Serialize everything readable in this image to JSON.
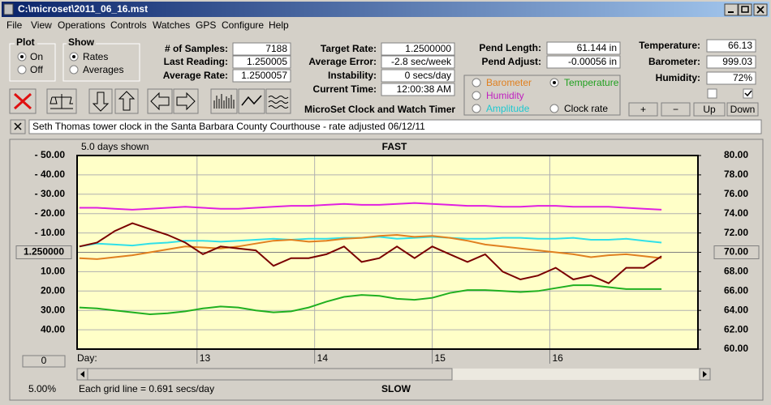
{
  "window": {
    "title": "C:\\microset\\2011_06_16.mst"
  },
  "menu": [
    "File",
    "View",
    "Operations",
    "Controls",
    "Watches",
    "GPS",
    "Configure",
    "Help"
  ],
  "plot_group": {
    "title": "Plot",
    "options": [
      "On",
      "Off"
    ]
  },
  "show_group": {
    "title": "Show",
    "options": [
      "Rates",
      "Averages"
    ]
  },
  "fields": [
    {
      "label": "# of Samples:",
      "value": "7188"
    },
    {
      "label": "Last Reading:",
      "value": "1.250005"
    },
    {
      "label": "Average Rate:",
      "value": "1.2500057"
    },
    {
      "label": "Target Rate:",
      "value": "1.2500000"
    },
    {
      "label": "Average Error:",
      "value": "-2.8 sec/week"
    },
    {
      "label": "Instability:",
      "value": "0 secs/day"
    },
    {
      "label": "Current Time:",
      "value": "12:00:38 AM"
    },
    {
      "label": "Pend Length:",
      "value": "61.144 in"
    },
    {
      "label": "Pend Adjust:",
      "value": "-0.00056 in"
    },
    {
      "label": "Temperature:",
      "value": "66.13"
    },
    {
      "label": "Barometer:",
      "value": "999.03"
    },
    {
      "label": "Humidity:",
      "value": "72%"
    }
  ],
  "app_title": "MicroSet Clock and Watch Timer",
  "graph_options": [
    "Barometer",
    "Humidity",
    "Amplitude",
    "Temperature",
    "Clock rate"
  ],
  "buttons": [
    "+",
    "−",
    "Up",
    "Down"
  ],
  "note": "Seth Thomas tower clock in the Santa Barbara County Courthouse - rate adjusted 06/12/11",
  "chart_data": {
    "type": "line",
    "days_shown": "5.0 days shown",
    "top_label": "FAST",
    "bottom_label": "SLOW",
    "x_label": "Day:",
    "footer": "Each grid line = 0.691 secs/day",
    "scale_percent": "5.00%",
    "offset_button": "0",
    "x": [
      12.0,
      12.15,
      12.3,
      12.45,
      12.6,
      12.75,
      12.9,
      13.05,
      13.2,
      13.35,
      13.5,
      13.65,
      13.8,
      13.95,
      14.1,
      14.25,
      14.4,
      14.55,
      14.7,
      14.85,
      15.0,
      15.15,
      15.3,
      15.45,
      15.6,
      15.75,
      15.9,
      16.05,
      16.2,
      16.35,
      16.5,
      16.65,
      16.8,
      16.95
    ],
    "xlim": [
      11.98,
      17.26
    ],
    "xticks": [
      13,
      14,
      15,
      16
    ],
    "ylim": [
      -50,
      50
    ],
    "yticks": [
      {
        "value": 50,
        "label": "- 50.00"
      },
      {
        "value": 40,
        "label": "- 40.00"
      },
      {
        "value": 30,
        "label": "- 30.00"
      },
      {
        "value": 20,
        "label": "- 20.00"
      },
      {
        "value": 10,
        "label": "- 10.00"
      },
      {
        "value": 0,
        "label": "1.250000"
      },
      {
        "value": -10,
        "label": "10.00"
      },
      {
        "value": -20,
        "label": "20.00"
      },
      {
        "value": -30,
        "label": "30.00"
      },
      {
        "value": -40,
        "label": "40.00"
      }
    ],
    "y2lim": [
      60,
      80
    ],
    "y2ticks": [
      {
        "value": 80,
        "label": "80.00"
      },
      {
        "value": 78,
        "label": "78.00"
      },
      {
        "value": 76,
        "label": "76.00"
      },
      {
        "value": 74,
        "label": "74.00"
      },
      {
        "value": 72,
        "label": "72.00"
      },
      {
        "value": 70,
        "label": "70.00"
      },
      {
        "value": 68,
        "label": "68.00"
      },
      {
        "value": 66,
        "label": "66.00"
      },
      {
        "value": 64,
        "label": "64.00"
      },
      {
        "value": 62,
        "label": "62.00"
      },
      {
        "value": 60,
        "label": "60.00"
      }
    ],
    "grid": true,
    "series": [
      {
        "color": "#e020e0",
        "axis": "y2",
        "values": [
          74.6,
          74.6,
          74.5,
          74.4,
          74.5,
          74.6,
          74.7,
          74.6,
          74.5,
          74.5,
          74.6,
          74.7,
          74.8,
          74.8,
          74.9,
          75.0,
          74.9,
          74.9,
          75.0,
          75.1,
          75.0,
          74.9,
          74.8,
          74.8,
          74.7,
          74.7,
          74.8,
          74.8,
          74.7,
          74.7,
          74.7,
          74.6,
          74.5,
          74.4
        ]
      },
      {
        "color": "#30e0e8",
        "axis": "y2",
        "values": [
          70.6,
          70.9,
          70.8,
          70.7,
          70.9,
          71.0,
          71.2,
          71.2,
          71.1,
          71.2,
          71.3,
          71.4,
          71.3,
          71.4,
          71.4,
          71.5,
          71.5,
          71.6,
          71.4,
          71.5,
          71.6,
          71.5,
          71.4,
          71.4,
          71.5,
          71.5,
          71.4,
          71.4,
          71.5,
          71.3,
          71.3,
          71.4,
          71.2,
          71.0
        ]
      },
      {
        "color": "#e08020",
        "axis": "y2",
        "values": [
          69.4,
          69.3,
          69.5,
          69.7,
          70.0,
          70.3,
          70.6,
          70.5,
          70.4,
          70.6,
          70.9,
          71.2,
          71.3,
          71.1,
          71.2,
          71.4,
          71.5,
          71.7,
          71.8,
          71.6,
          71.7,
          71.5,
          71.2,
          70.8,
          70.6,
          70.4,
          70.2,
          70.0,
          69.8,
          69.5,
          69.7,
          69.8,
          69.6,
          69.4
        ]
      },
      {
        "color": "#20b020",
        "axis": "y2",
        "values": [
          64.3,
          64.2,
          64.0,
          63.8,
          63.6,
          63.7,
          63.9,
          64.2,
          64.4,
          64.3,
          64.0,
          63.8,
          63.9,
          64.3,
          64.9,
          65.4,
          65.6,
          65.5,
          65.2,
          65.1,
          65.3,
          65.8,
          66.1,
          66.1,
          66.0,
          65.9,
          66.0,
          66.3,
          66.6,
          66.6,
          66.4,
          66.2,
          66.2,
          66.2
        ]
      },
      {
        "color": "#7a0000",
        "values": [
          3,
          5,
          11,
          15,
          12,
          9,
          5,
          -1,
          3,
          2,
          1,
          -7,
          -3,
          -3,
          -1,
          3,
          -5,
          -3,
          3,
          -3,
          3,
          -1,
          -5,
          -1,
          -10,
          -14,
          -12,
          -8,
          -14,
          -12,
          -16,
          -8,
          -8,
          -2
        ]
      }
    ]
  }
}
